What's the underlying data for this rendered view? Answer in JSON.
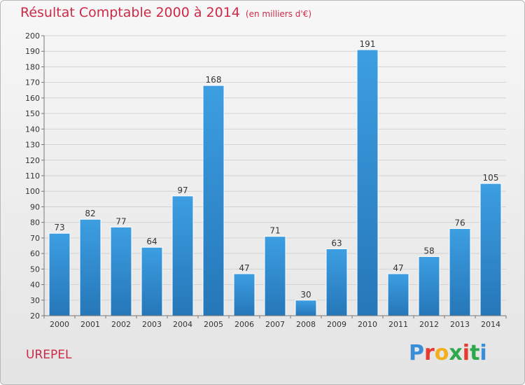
{
  "header": {
    "title": "Résultat Comptable 2000 à 2014",
    "subtitle": "(en milliers d'€)"
  },
  "footer": {
    "commune": "UREPEL",
    "brand_letters": [
      "P",
      "r",
      "o",
      "x",
      "i",
      "t",
      "i"
    ],
    "brand_colors": [
      "#3a8fd8",
      "#e53a2f",
      "#f2b01e",
      "#2ea84a",
      "#e53a2f",
      "#2ea84a",
      "#3a8fd8"
    ]
  },
  "colors": {
    "bar": "#3d9ee2",
    "bar_dark": "#2577b8",
    "title": "#cc2a47"
  },
  "chart_data": {
    "type": "bar",
    "title": "Résultat Comptable 2000 à 2014",
    "subtitle": "(en milliers d'€)",
    "categories": [
      "2000",
      "2001",
      "2002",
      "2003",
      "2004",
      "2005",
      "2006",
      "2007",
      "2008",
      "2009",
      "2010",
      "2011",
      "2012",
      "2013",
      "2014"
    ],
    "values": [
      73,
      82,
      77,
      64,
      97,
      168,
      47,
      71,
      30,
      63,
      191,
      47,
      58,
      76,
      105
    ],
    "ylim": [
      20,
      200
    ],
    "yticks": [
      20,
      30,
      40,
      50,
      60,
      70,
      80,
      90,
      100,
      110,
      120,
      130,
      140,
      150,
      160,
      170,
      180,
      190,
      200
    ],
    "grid": true
  }
}
